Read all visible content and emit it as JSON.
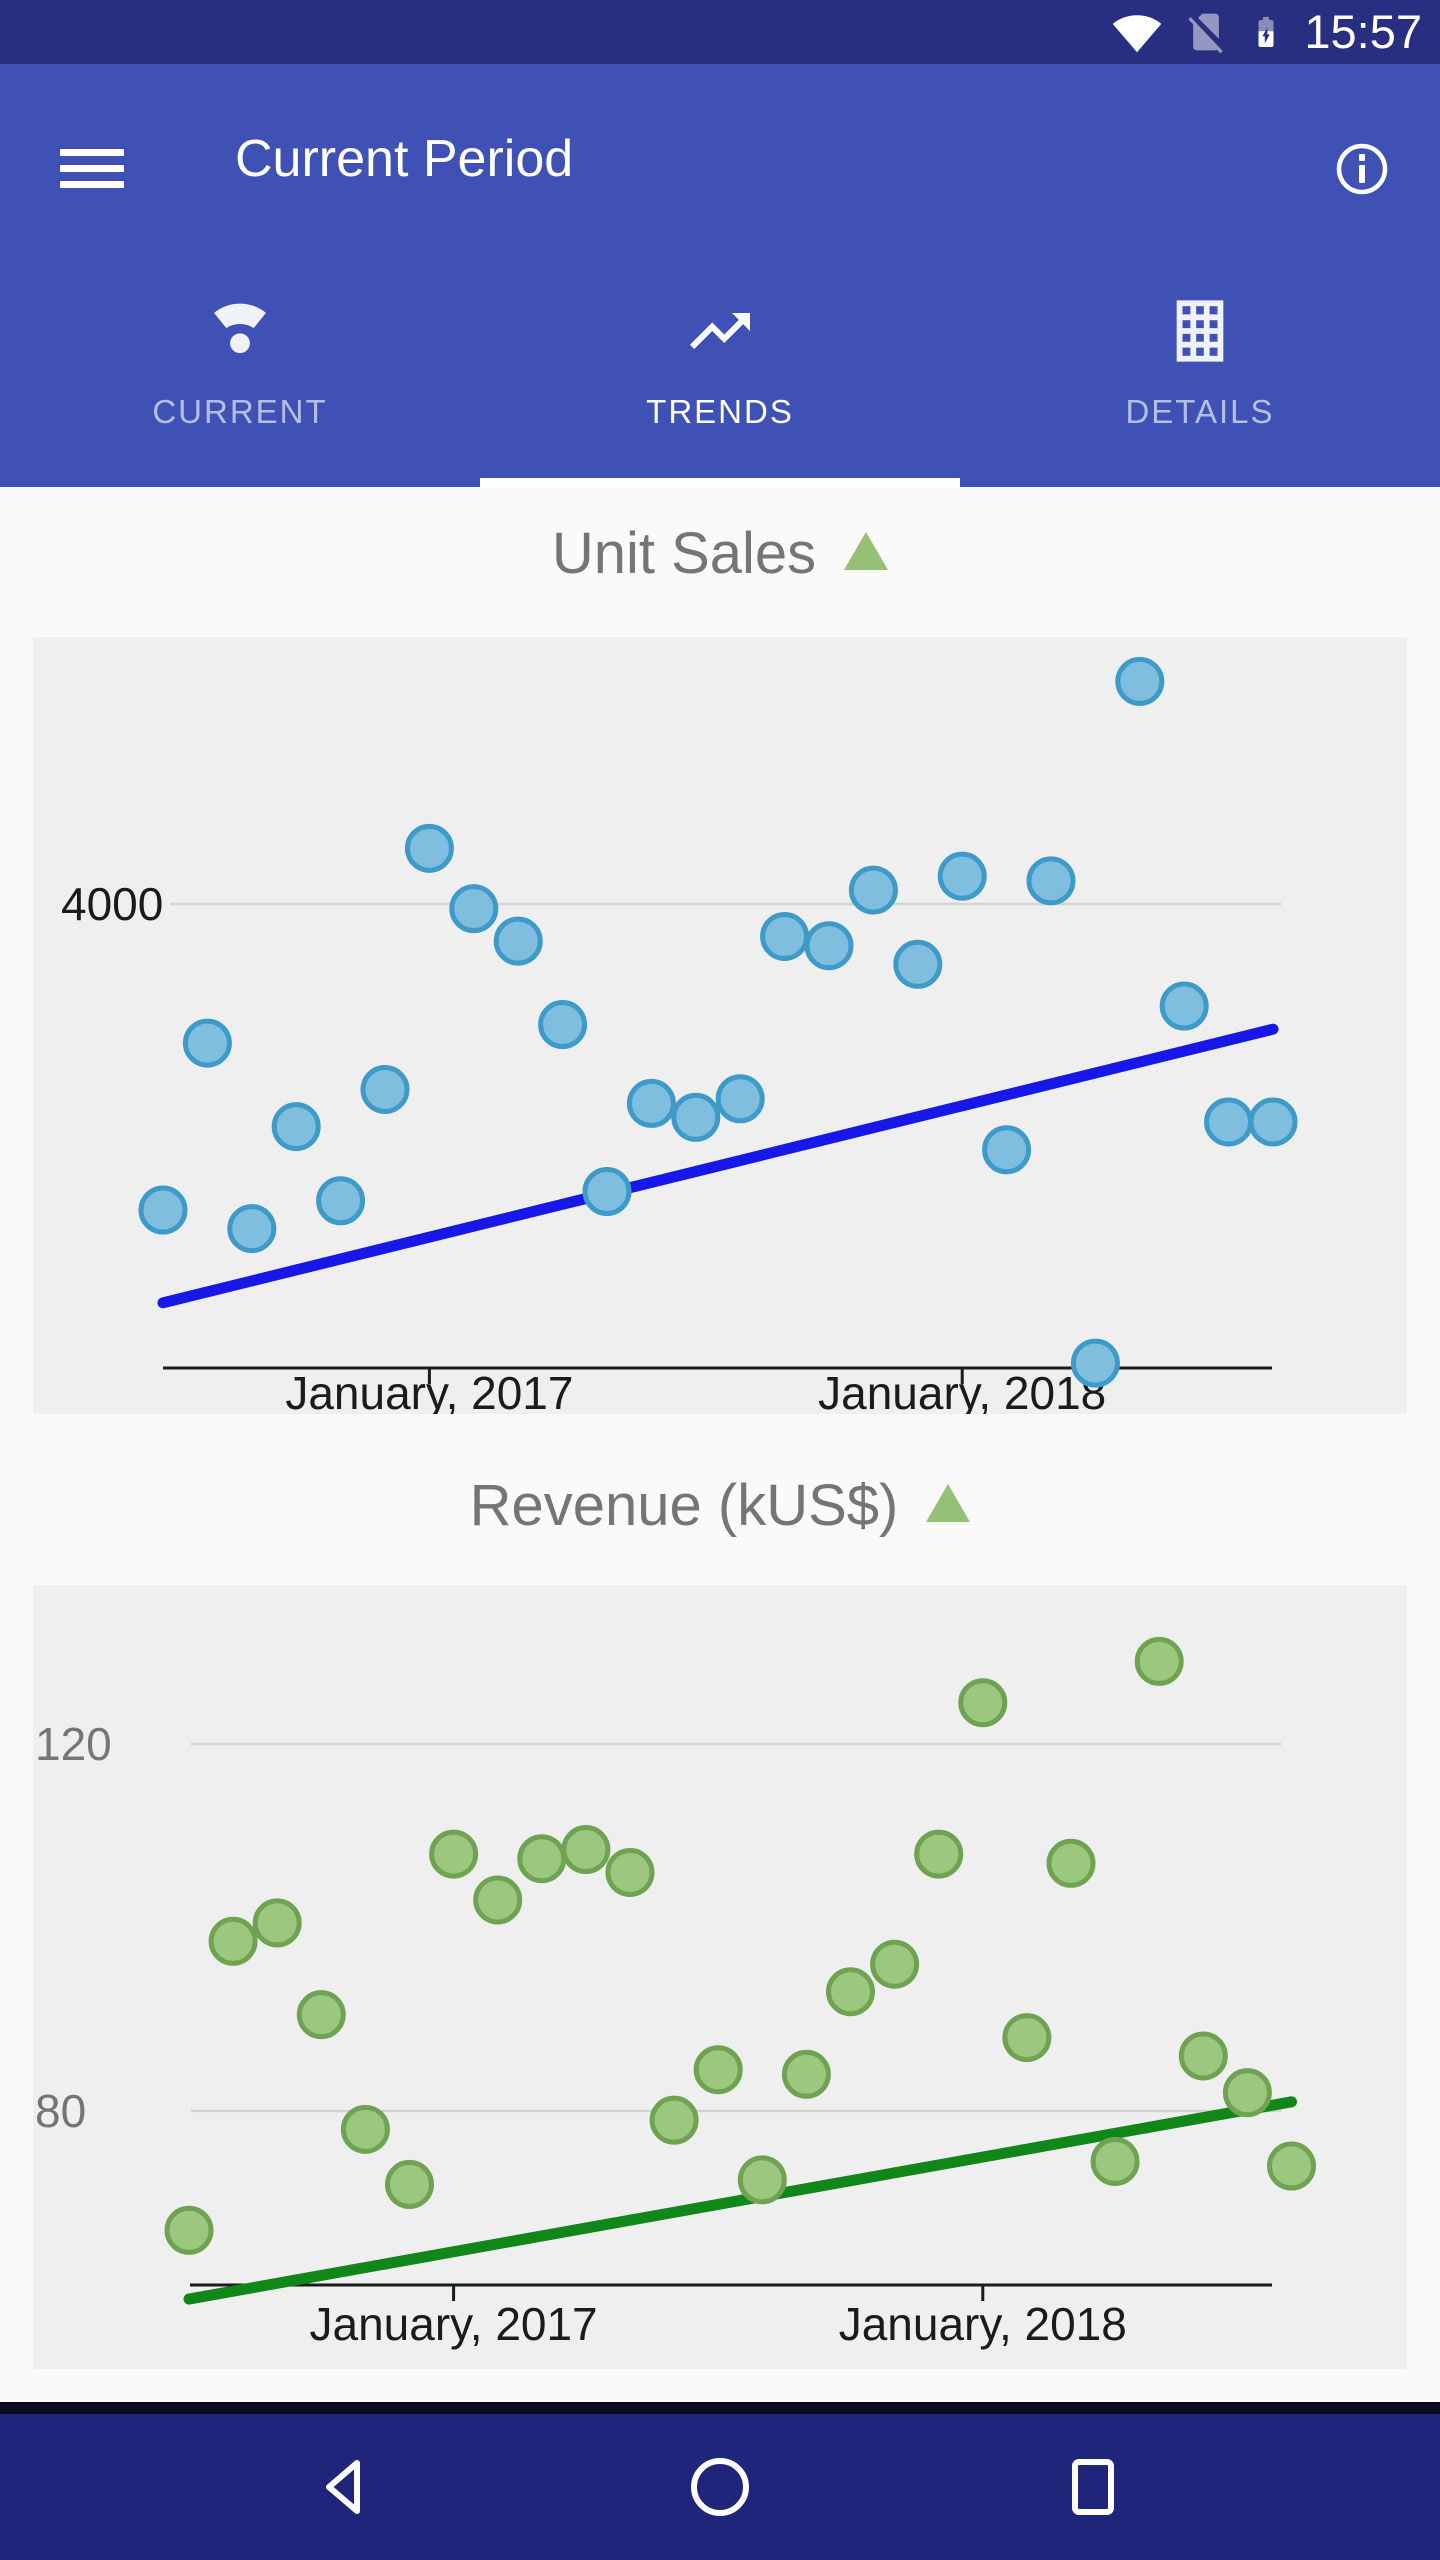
{
  "status_bar": {
    "time": "15:57",
    "icons": [
      "wifi-icon",
      "no-sim-icon",
      "battery-charging-icon"
    ],
    "background": "#282F80"
  },
  "app_bar": {
    "title": "Current Period",
    "background": "#3F51B5",
    "icons": [
      "menu-icon",
      "info-icon"
    ]
  },
  "tabs": [
    {
      "id": "current",
      "label": "CURRENT",
      "icon": "wifi-dot-icon",
      "active": false
    },
    {
      "id": "trends",
      "label": "TRENDS",
      "icon": "trending-up-icon",
      "active": true
    },
    {
      "id": "details",
      "label": "DETAILS",
      "icon": "grid-icon",
      "active": false
    }
  ],
  "colors": {
    "status_bar": "#282F80",
    "app_bar": "#3F51B5",
    "nav_bar": "#1E257A",
    "page_bg": "#FAFAFA",
    "plot_bg": "#EFEFEF",
    "title_gray": "#757575",
    "triangle_green": "#97C077",
    "blue_marker": "#7FBEDF",
    "blue_marker_border": "#3D9AC9",
    "blue_trend": "#1717E8",
    "green_marker": "#9BC87E",
    "green_marker_border": "#6FA352",
    "green_trend": "#118619"
  },
  "nav_bar": {
    "icons": [
      "back-icon",
      "home-icon",
      "recents-icon"
    ]
  },
  "chart_data": [
    {
      "type": "scatter",
      "title": "Unit Sales",
      "trend_indicator": "up",
      "x": [
        "Jul 2016",
        "Aug 2016",
        "Sep 2016",
        "Oct 2016",
        "Nov 2016",
        "Dec 2016",
        "Jan 2017",
        "Feb 2017",
        "Mar 2017",
        "Apr 2017",
        "May 2017",
        "Jun 2017",
        "Jul 2017",
        "Aug 2017",
        "Sep 2017",
        "Oct 2017",
        "Nov 2017",
        "Dec 2017",
        "Jan 2018",
        "Feb 2018",
        "Mar 2018",
        "Apr 2018",
        "May 2018",
        "Jun 2018",
        "Jul 2018",
        "Aug 2018"
      ],
      "values": [
        3340,
        3700,
        3300,
        3520,
        3360,
        3600,
        4120,
        3990,
        3920,
        3740,
        3380,
        3570,
        3540,
        3580,
        3930,
        3910,
        4030,
        3870,
        4060,
        3470,
        4050,
        3010,
        4480,
        3780,
        3530,
        3530
      ],
      "ylim": [
        3000,
        4580
      ],
      "grid": true,
      "y_gridlines": [
        {
          "label": "4000",
          "value": 4000
        }
      ],
      "y_label_color": "#1a1a1a",
      "x_ticks": [
        {
          "label": "January, 2017",
          "month_index": 6
        },
        {
          "label": "January, 2018",
          "month_index": 18
        }
      ],
      "trend_line": {
        "start_value": 3140,
        "end_value": 3730,
        "color": "#1717E8"
      },
      "marker_color": "#7FBEDF",
      "marker_border": "#3D9AC9"
    },
    {
      "type": "scatter",
      "title": "Revenue (kUS$)",
      "trend_indicator": "up",
      "x": [
        "Jul 2016",
        "Aug 2016",
        "Sep 2016",
        "Oct 2016",
        "Nov 2016",
        "Dec 2016",
        "Jan 2017",
        "Feb 2017",
        "Mar 2017",
        "Apr 2017",
        "May 2017",
        "Jun 2017",
        "Jul 2017",
        "Aug 2017",
        "Sep 2017",
        "Oct 2017",
        "Nov 2017",
        "Dec 2017",
        "Jan 2018",
        "Feb 2018",
        "Mar 2018",
        "Apr 2018",
        "May 2018",
        "Jun 2018",
        "Jul 2018",
        "Aug 2018"
      ],
      "values": [
        67,
        98.5,
        100.5,
        90.5,
        78,
        72,
        108,
        103,
        107.5,
        108.5,
        106,
        79,
        84.5,
        72.5,
        84,
        93,
        96,
        108,
        124.5,
        88,
        107,
        74.5,
        129,
        86,
        82,
        74
      ],
      "ylim": [
        52,
        137
      ],
      "grid": true,
      "y_gridlines": [
        {
          "label": "120",
          "value": 120
        },
        {
          "label": "80",
          "value": 80
        }
      ],
      "y_label_color": "#757575",
      "x_ticks": [
        {
          "label": "January, 2017",
          "month_index": 6
        },
        {
          "label": "January, 2018",
          "month_index": 18
        }
      ],
      "trend_line": {
        "start_value": 59.5,
        "end_value": 81,
        "color": "#118619"
      },
      "marker_color": "#9BC87E",
      "marker_border": "#6FA352"
    }
  ]
}
